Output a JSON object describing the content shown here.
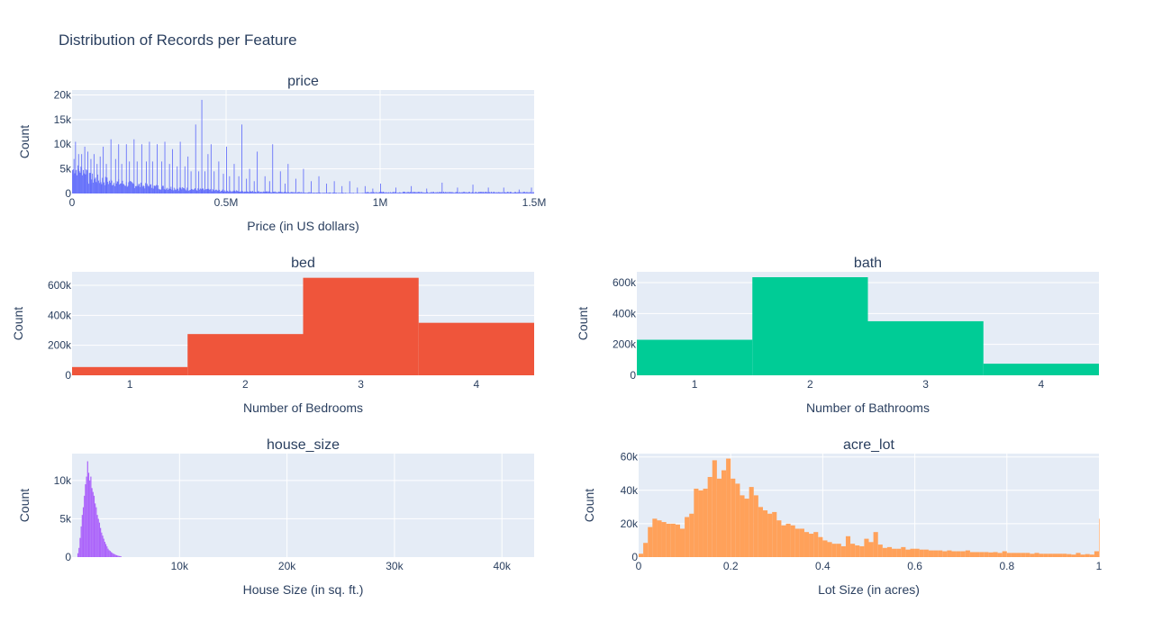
{
  "title": "Distribution of Records per Feature",
  "colors": {
    "plot_bg": "#e5ecf6",
    "grid": "#ffffff",
    "text": "#2a3f5f"
  },
  "chart_data": [
    {
      "id": "price",
      "type": "bar",
      "subtitle": "price",
      "xlabel": "Price (in US dollars)",
      "ylabel": "Count",
      "color": "#636efa",
      "xlim": [
        0,
        1500000
      ],
      "ylim": [
        0,
        21000
      ],
      "x_ticks": [
        0,
        500000,
        1000000,
        1500000
      ],
      "x_tick_labels": [
        "0",
        "0.5M",
        "1M",
        "1.5M"
      ],
      "y_ticks": [
        0,
        5000,
        10000,
        15000,
        20000
      ],
      "y_tick_labels": [
        "0",
        "5k",
        "10k",
        "15k",
        "20k"
      ],
      "bin_width": 2500,
      "peaks": [
        [
          5000,
          7000
        ],
        [
          10000,
          10500
        ],
        [
          20000,
          8000
        ],
        [
          30000,
          8000
        ],
        [
          40000,
          9500
        ],
        [
          50000,
          8500
        ],
        [
          60000,
          7000
        ],
        [
          70000,
          8000
        ],
        [
          80000,
          6000
        ],
        [
          90000,
          7500
        ],
        [
          100000,
          9500
        ],
        [
          110000,
          6000
        ],
        [
          125000,
          11000
        ],
        [
          140000,
          7000
        ],
        [
          150000,
          10000
        ],
        [
          160000,
          6000
        ],
        [
          175000,
          10000
        ],
        [
          185000,
          6500
        ],
        [
          200000,
          11000
        ],
        [
          210000,
          6500
        ],
        [
          225000,
          10000
        ],
        [
          240000,
          6500
        ],
        [
          250000,
          10500
        ],
        [
          260000,
          6500
        ],
        [
          275000,
          10000
        ],
        [
          290000,
          6500
        ],
        [
          300000,
          10500
        ],
        [
          315000,
          6000
        ],
        [
          325000,
          9000
        ],
        [
          340000,
          5500
        ],
        [
          350000,
          10500
        ],
        [
          365000,
          5500
        ],
        [
          375000,
          7500
        ],
        [
          385000,
          4500
        ],
        [
          400000,
          14000
        ],
        [
          410000,
          4500
        ],
        [
          420000,
          19000
        ],
        [
          430000,
          4500
        ],
        [
          440000,
          8000
        ],
        [
          450000,
          10000
        ],
        [
          460000,
          4500
        ],
        [
          475000,
          6500
        ],
        [
          490000,
          4000
        ],
        [
          500000,
          9500
        ],
        [
          510000,
          3500
        ],
        [
          525000,
          6000
        ],
        [
          540000,
          3500
        ],
        [
          550000,
          14000
        ],
        [
          565000,
          3000
        ],
        [
          575000,
          5000
        ],
        [
          590000,
          2500
        ],
        [
          600000,
          8500
        ],
        [
          625000,
          3500
        ],
        [
          640000,
          2500
        ],
        [
          650000,
          10000
        ],
        [
          675000,
          4500
        ],
        [
          690000,
          2000
        ],
        [
          700000,
          6000
        ],
        [
          725000,
          3000
        ],
        [
          750000,
          5000
        ],
        [
          775000,
          2500
        ],
        [
          800000,
          3500
        ],
        [
          825000,
          2000
        ],
        [
          850000,
          2500
        ],
        [
          875000,
          1500
        ],
        [
          900000,
          2500
        ],
        [
          925000,
          1200
        ],
        [
          950000,
          1500
        ],
        [
          975000,
          1000
        ],
        [
          1000000,
          2000
        ],
        [
          1050000,
          1200
        ],
        [
          1100000,
          1500
        ],
        [
          1150000,
          1000
        ],
        [
          1200000,
          2200
        ],
        [
          1250000,
          1200
        ],
        [
          1300000,
          1800
        ],
        [
          1350000,
          1200
        ],
        [
          1400000,
          1200
        ],
        [
          1450000,
          800
        ],
        [
          1490000,
          1200
        ]
      ]
    },
    {
      "id": "bed",
      "type": "bar",
      "subtitle": "bed",
      "xlabel": "Number of Bedrooms",
      "ylabel": "Count",
      "color": "#ef553b",
      "xlim": [
        0.5,
        4.5
      ],
      "ylim": [
        0,
        690000
      ],
      "categories": [
        1,
        2,
        3,
        4
      ],
      "values": [
        55000,
        275000,
        650000,
        350000
      ],
      "x_ticks": [
        1,
        2,
        3,
        4
      ],
      "x_tick_labels": [
        "1",
        "2",
        "3",
        "4"
      ],
      "y_ticks": [
        0,
        200000,
        400000,
        600000
      ],
      "y_tick_labels": [
        "0",
        "200k",
        "400k",
        "600k"
      ]
    },
    {
      "id": "bath",
      "type": "bar",
      "subtitle": "bath",
      "xlabel": "Number of Bathrooms",
      "ylabel": "Count",
      "color": "#00cc96",
      "xlim": [
        0.5,
        4.5
      ],
      "ylim": [
        0,
        670000
      ],
      "categories": [
        1,
        2,
        3,
        4
      ],
      "values": [
        230000,
        635000,
        350000,
        75000
      ],
      "x_ticks": [
        1,
        2,
        3,
        4
      ],
      "x_tick_labels": [
        "1",
        "2",
        "3",
        "4"
      ],
      "y_ticks": [
        0,
        200000,
        400000,
        600000
      ],
      "y_tick_labels": [
        "0",
        "200k",
        "400k",
        "600k"
      ]
    },
    {
      "id": "house_size",
      "type": "bar",
      "subtitle": "house_size",
      "xlabel": "House Size (in sq. ft.)",
      "ylabel": "Count",
      "color": "#ab63fa",
      "xlim": [
        0,
        43000
      ],
      "ylim": [
        0,
        13500
      ],
      "x_ticks": [
        10000,
        20000,
        30000,
        40000
      ],
      "x_tick_labels": [
        "10k",
        "20k",
        "30k",
        "40k"
      ],
      "y_ticks": [
        0,
        5000,
        10000
      ],
      "y_tick_labels": [
        "0",
        "5k",
        "10k"
      ],
      "bin_width": 100,
      "x": [
        500,
        600,
        700,
        800,
        900,
        1000,
        1100,
        1200,
        1300,
        1400,
        1500,
        1600,
        1700,
        1800,
        1900,
        2000,
        2100,
        2200,
        2300,
        2400,
        2500,
        2600,
        2700,
        2800,
        2900,
        3000,
        3100,
        3200,
        3300,
        3400,
        3500,
        3600,
        3700,
        3800,
        3900,
        4000,
        4100,
        4200,
        4300,
        4400,
        4500
      ],
      "values": [
        500,
        1200,
        2500,
        4000,
        5500,
        6500,
        8000,
        9500,
        10500,
        12500,
        11000,
        10000,
        10500,
        9000,
        8500,
        8000,
        7000,
        6500,
        5500,
        5000,
        4500,
        3800,
        3200,
        2800,
        2400,
        2000,
        1700,
        1400,
        1100,
        900,
        800,
        650,
        550,
        450,
        380,
        300,
        250,
        200,
        160,
        130,
        100
      ]
    },
    {
      "id": "acre_lot",
      "type": "bar",
      "subtitle": "acre_lot",
      "xlabel": "Lot Size (in acres)",
      "ylabel": "Count",
      "color": "#ffa15a",
      "xlim": [
        0,
        1
      ],
      "ylim": [
        0,
        62000
      ],
      "x_ticks": [
        0,
        0.2,
        0.4,
        0.6,
        0.8,
        1
      ],
      "x_tick_labels": [
        "0",
        "0.2",
        "0.4",
        "0.6",
        "0.8",
        "1"
      ],
      "y_ticks": [
        0,
        20000,
        40000,
        60000
      ],
      "y_tick_labels": [
        "0",
        "20k",
        "40k",
        "60k"
      ],
      "bin_width": 0.01,
      "values": [
        2000,
        8500,
        18000,
        23000,
        22000,
        21000,
        20000,
        20000,
        19500,
        17000,
        24000,
        26000,
        41000,
        40000,
        41000,
        48000,
        58000,
        47000,
        52000,
        59000,
        47000,
        44000,
        37000,
        35000,
        42000,
        37000,
        30000,
        28000,
        26000,
        27000,
        22000,
        19000,
        20000,
        19000,
        17000,
        17000,
        15000,
        14000,
        15000,
        12000,
        10000,
        9000,
        8000,
        8000,
        6500,
        12500,
        8000,
        7000,
        6500,
        11000,
        9000,
        15000,
        7500,
        5500,
        6000,
        5000,
        5000,
        6000,
        4500,
        5000,
        5000,
        4500,
        4500,
        4000,
        4000,
        4000,
        3500,
        4000,
        3500,
        3500,
        3500,
        4000,
        3000,
        3000,
        3000,
        3000,
        2800,
        3000,
        2500,
        3500,
        2500,
        2500,
        2500,
        2500,
        2500,
        2000,
        2500,
        2000,
        2000,
        2000,
        2000,
        2000,
        2000,
        1800,
        1500,
        2500,
        1500,
        1800,
        1500,
        3500,
        23000
      ]
    }
  ]
}
